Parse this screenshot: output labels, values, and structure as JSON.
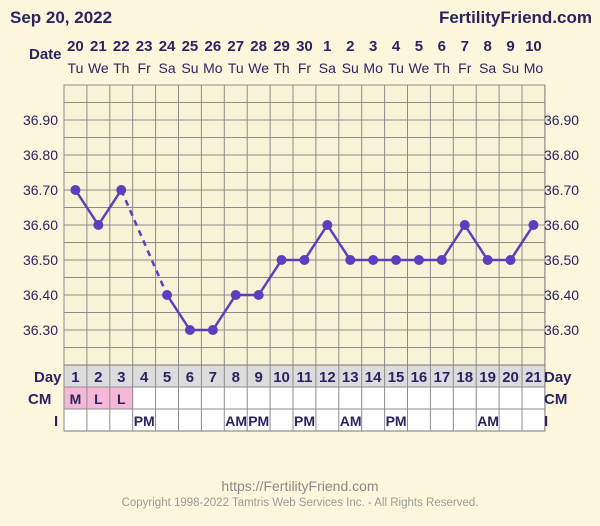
{
  "header": {
    "date": "Sep 20, 2022",
    "brand": "FertilityFriend.com"
  },
  "row_labels": {
    "date": "Date",
    "day": "Day",
    "cm": "CM",
    "i": "I"
  },
  "chart_data": {
    "type": "line",
    "x_dates": [
      "20",
      "21",
      "22",
      "23",
      "24",
      "25",
      "26",
      "27",
      "28",
      "29",
      "30",
      "1",
      "2",
      "3",
      "4",
      "5",
      "6",
      "7",
      "8",
      "9",
      "10"
    ],
    "x_weekdays": [
      "Tu",
      "We",
      "Th",
      "Fr",
      "Sa",
      "Su",
      "Mo",
      "Tu",
      "We",
      "Th",
      "Fr",
      "Sa",
      "Su",
      "Mo",
      "Tu",
      "We",
      "Th",
      "Fr",
      "Sa",
      "Su",
      "Mo"
    ],
    "cycle_days": [
      1,
      2,
      3,
      4,
      5,
      6,
      7,
      8,
      9,
      10,
      11,
      12,
      13,
      14,
      15,
      16,
      17,
      18,
      19,
      20,
      21
    ],
    "temperatures": [
      36.7,
      36.6,
      36.7,
      null,
      36.4,
      36.3,
      36.3,
      36.4,
      36.4,
      36.5,
      36.5,
      36.6,
      36.5,
      36.5,
      36.5,
      36.5,
      36.5,
      36.6,
      36.5,
      36.5,
      36.6
    ],
    "dashed_segment": {
      "from_day": 3,
      "to_day": 5
    },
    "y_ticks": [
      "36.90",
      "36.80",
      "36.70",
      "36.60",
      "36.50",
      "36.40",
      "36.30"
    ],
    "ylim": [
      36.2,
      37.0
    ],
    "grid": true,
    "line_color": "#5b3fbf",
    "cm": [
      "M",
      "L",
      "L",
      "",
      "",
      "",
      "",
      "",
      "",
      "",
      "",
      "",
      "",
      "",
      "",
      "",
      "",
      "",
      "",
      "",
      ""
    ],
    "cm_highlight_color": "#f5b8d6",
    "i": [
      "",
      "",
      "",
      "PM",
      "",
      "",
      "",
      "AM",
      "PM",
      "",
      "PM",
      "",
      "AM",
      "",
      "PM",
      "",
      "",
      "",
      "AM",
      "",
      ""
    ]
  },
  "footer": {
    "url": "https://FertilityFriend.com",
    "copyright": "Copyright 1998-2022 Tamtris Web Services Inc. - All Rights Reserved."
  },
  "colors": {
    "background": "#fbf6dc",
    "text": "#2b2462",
    "grid": "#8c8c8c"
  }
}
